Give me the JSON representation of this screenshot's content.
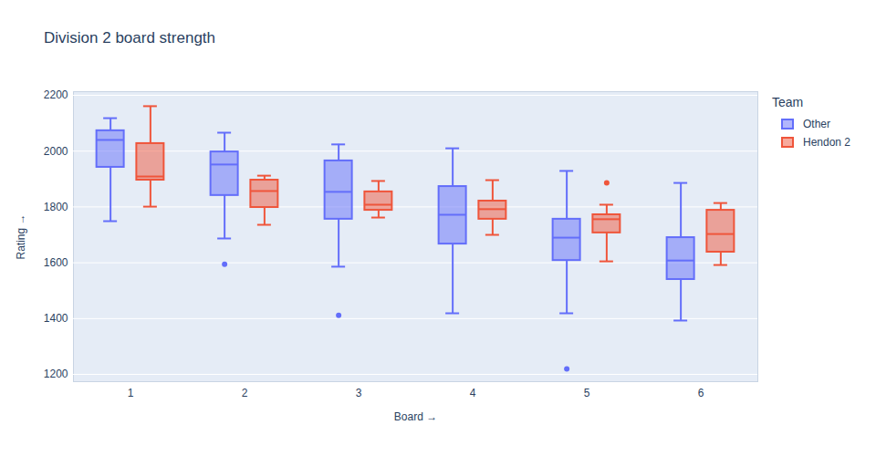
{
  "chart_data": {
    "type": "box",
    "title": "Division 2 board strength",
    "x_label": "Board",
    "y_label": "Rating",
    "legend_title": "Team",
    "legend": "right",
    "grid": true,
    "categories": [
      "1",
      "2",
      "3",
      "4",
      "5",
      "6"
    ],
    "ylim": [
      1174,
      2213
    ],
    "yticks": [
      1200,
      1400,
      1600,
      1800,
      2000,
      2200
    ],
    "series": [
      {
        "name": "Other",
        "color": "#636efa",
        "boxes": [
          {
            "min": 1749,
            "q1": 1942,
            "median": 2040,
            "q3": 2073,
            "max": 2118,
            "outliers": []
          },
          {
            "min": 1687,
            "q1": 1841,
            "median": 1952,
            "q3": 1997,
            "max": 2066,
            "outliers": [
              1595
            ]
          },
          {
            "min": 1586,
            "q1": 1756,
            "median": 1854,
            "q3": 1965,
            "max": 2024,
            "outliers": [
              1412
            ]
          },
          {
            "min": 1419,
            "q1": 1667,
            "median": 1772,
            "q3": 1873,
            "max": 2010,
            "outliers": []
          },
          {
            "min": 1419,
            "q1": 1608,
            "median": 1690,
            "q3": 1756,
            "max": 1929,
            "outliers": [
              1220
            ]
          },
          {
            "min": 1393,
            "q1": 1540,
            "median": 1608,
            "q3": 1690,
            "max": 1886,
            "outliers": []
          }
        ]
      },
      {
        "name": "Hendon 2",
        "color": "#ef553b",
        "boxes": [
          {
            "min": 1801,
            "q1": 1896,
            "median": 1909,
            "q3": 2027,
            "max": 2161,
            "outliers": []
          },
          {
            "min": 1736,
            "q1": 1798,
            "median": 1857,
            "q3": 1896,
            "max": 1912,
            "outliers": []
          },
          {
            "min": 1762,
            "q1": 1788,
            "median": 1808,
            "q3": 1854,
            "max": 1893,
            "outliers": []
          },
          {
            "min": 1700,
            "q1": 1756,
            "median": 1792,
            "q3": 1821,
            "max": 1896,
            "outliers": []
          },
          {
            "min": 1605,
            "q1": 1707,
            "median": 1756,
            "q3": 1772,
            "max": 1808,
            "outliers": [
              1886
            ]
          },
          {
            "min": 1592,
            "q1": 1638,
            "median": 1703,
            "q3": 1788,
            "max": 1814,
            "outliers": []
          }
        ]
      }
    ]
  }
}
